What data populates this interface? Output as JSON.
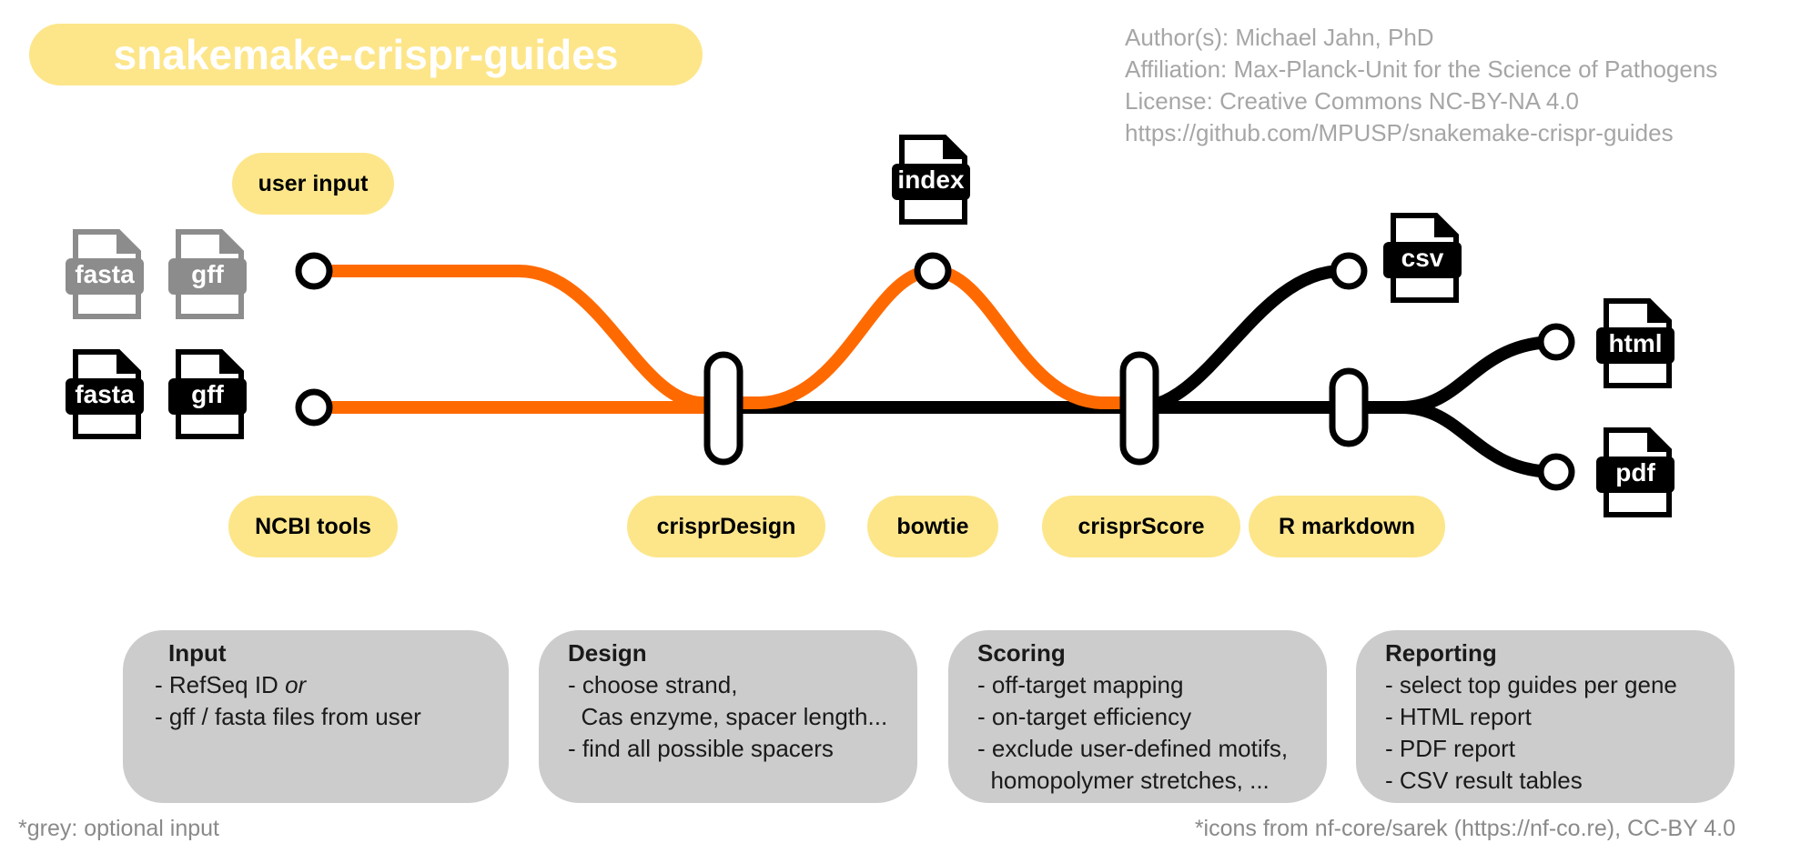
{
  "title": "snakemake-crispr-guides",
  "meta": {
    "authors": "Author(s): Michael Jahn, PhD",
    "affiliation": "Affiliation: Max-Planck-Unit for the Science of Pathogens",
    "license": "License: Creative Commons NC-BY-NA 4.0",
    "url": "https://github.com/MPUSP/snakemake-crispr-guides"
  },
  "colors": {
    "accent": "#fde68a",
    "pipe_orange": "#ff6a00",
    "pipe_black": "#000000",
    "optional_grey": "#8c8c8c",
    "box_grey": "#cccccc"
  },
  "tools": {
    "user_input": "user input",
    "ncbi_tools": "NCBI tools",
    "crispr_design": "crisprDesign",
    "bowtie": "bowtie",
    "crispr_score": "crisprScore",
    "r_markdown": "R markdown"
  },
  "files": {
    "fasta_optional": "fasta",
    "gff_optional": "gff",
    "fasta": "fasta",
    "gff": "gff",
    "index": "index",
    "csv": "csv",
    "html": "html",
    "pdf": "pdf"
  },
  "boxes": {
    "input": {
      "title": "Input",
      "l1a": "- RefSeq ID ",
      "l1b": "or",
      "l2": "- gff / fasta files from user"
    },
    "design": {
      "title": "Design",
      "l1": "- choose strand,",
      "l2": "  Cas enzyme, spacer length...",
      "l3": "- find all possible spacers"
    },
    "scoring": {
      "title": "Scoring",
      "l1": "- off-target mapping",
      "l2": "- on-target efficiency",
      "l3": "- exclude user-defined motifs,",
      "l4": "  homopolymer stretches, ..."
    },
    "reporting": {
      "title": "Reporting",
      "l1": "- select top guides per gene",
      "l2": "- HTML report",
      "l3": "- PDF report",
      "l4": "- CSV result tables"
    }
  },
  "footer": {
    "left": "*grey: optional input",
    "right": "*icons from nf-core/sarek (https://nf-co.re), CC-BY 4.0"
  }
}
